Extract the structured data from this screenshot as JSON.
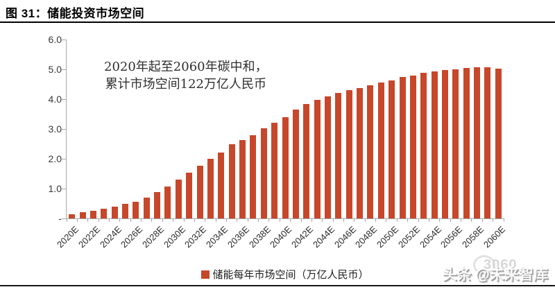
{
  "header": {
    "title": "图 31：储能投资市场空间"
  },
  "annotation": {
    "line1": "2020年起至2060年碳中和，",
    "line2": "累计市场空间122万亿人民币"
  },
  "legend": {
    "label": "储能每年市场空间（万亿人民币）"
  },
  "watermark": {
    "text": "头条 @未来智库",
    "background_text": "3060"
  },
  "colors": {
    "bar": "#c7472b",
    "axis": "#a8a8a8",
    "title_rule": "#000000",
    "bottom_rule": "#151515"
  },
  "chart_data": {
    "type": "bar",
    "title": "储能投资市场空间",
    "categories": [
      "2020E",
      "2021E",
      "2022E",
      "2023E",
      "2024E",
      "2025E",
      "2026E",
      "2027E",
      "2028E",
      "2029E",
      "2030E",
      "2031E",
      "2032E",
      "2033E",
      "2034E",
      "2035E",
      "2036E",
      "2037E",
      "2038E",
      "2039E",
      "2040E",
      "2041E",
      "2042E",
      "2043E",
      "2044E",
      "2045E",
      "2046E",
      "2047E",
      "2048E",
      "2049E",
      "2050E",
      "2051E",
      "2052E",
      "2053E",
      "2054E",
      "2055E",
      "2056E",
      "2057E",
      "2058E",
      "2059E",
      "2060E"
    ],
    "values": [
      0.13,
      0.2,
      0.25,
      0.32,
      0.4,
      0.48,
      0.55,
      0.7,
      0.88,
      1.08,
      1.3,
      1.53,
      1.77,
      2.0,
      2.22,
      2.48,
      2.62,
      2.8,
      3.02,
      3.2,
      3.4,
      3.65,
      3.83,
      3.98,
      4.1,
      4.2,
      4.3,
      4.37,
      4.46,
      4.55,
      4.63,
      4.75,
      4.8,
      4.88,
      4.94,
      4.97,
      5.0,
      5.04,
      5.06,
      5.06,
      5.03
    ],
    "xtick_labels": [
      "2020E",
      "2022E",
      "2024E",
      "2026E",
      "2028E",
      "2030E",
      "2032E",
      "2034E",
      "2036E",
      "2038E",
      "2040E",
      "2042E",
      "2044E",
      "2046E",
      "2048E",
      "2050E",
      "2052E",
      "2054E",
      "2056E",
      "2058E",
      "2060E"
    ],
    "xtick_label_step": 2,
    "ytick_labels": [
      "6.0",
      "5.0",
      "4.0",
      "3.0",
      "2.0",
      "1.0",
      "-"
    ],
    "ytick_values": [
      6,
      5,
      4,
      3,
      2,
      1,
      0
    ],
    "ylim": [
      0,
      6
    ],
    "xlabel": "",
    "ylabel": "",
    "grid": false,
    "bar_color": "#c7472b",
    "legend": [
      "储能每年市场空间（万亿人民币）"
    ],
    "legend_position": "bottom-center",
    "annotation_total": "122万亿人民币"
  }
}
